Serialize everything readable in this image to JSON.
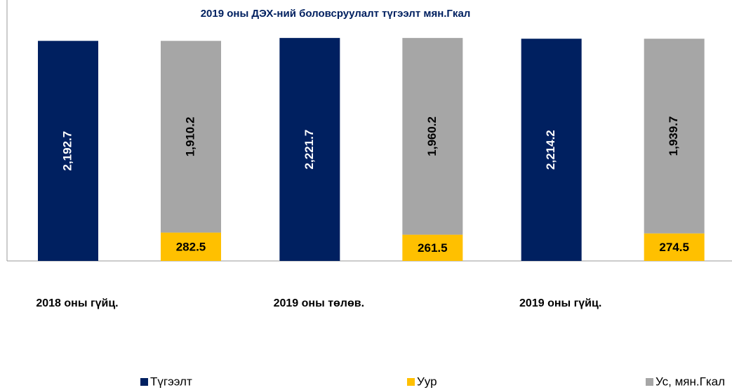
{
  "chart_data": {
    "type": "bar",
    "title": "2019 оны ДЭХ-ний боловсруулалт түгээлт мян.Гкал",
    "categories": [
      "2018 оны гүйц.",
      "2019 оны төлөв.",
      "2019 оны гүйц."
    ],
    "series": [
      {
        "name": "Түгээлт",
        "color": "#002060",
        "values": [
          2192.7,
          2221.7,
          2214.2
        ],
        "value_labels": [
          "2,192.7",
          "2,221.7",
          "2,214.2"
        ]
      },
      {
        "name": "Уур",
        "color": "#FFC000",
        "values": [
          282.5,
          261.5,
          274.5
        ]
      },
      {
        "name": "Ус, мян.Гкал",
        "color": "#A6A6A6",
        "values": [
          1910.2,
          1960.2,
          1939.7
        ],
        "value_labels": [
          "1,910.2",
          "1,960.2",
          "1,939.7"
        ]
      }
    ],
    "stack_groups": [
      [
        0
      ],
      [
        1,
        2
      ]
    ],
    "ylim": [
      0,
      2600
    ]
  }
}
